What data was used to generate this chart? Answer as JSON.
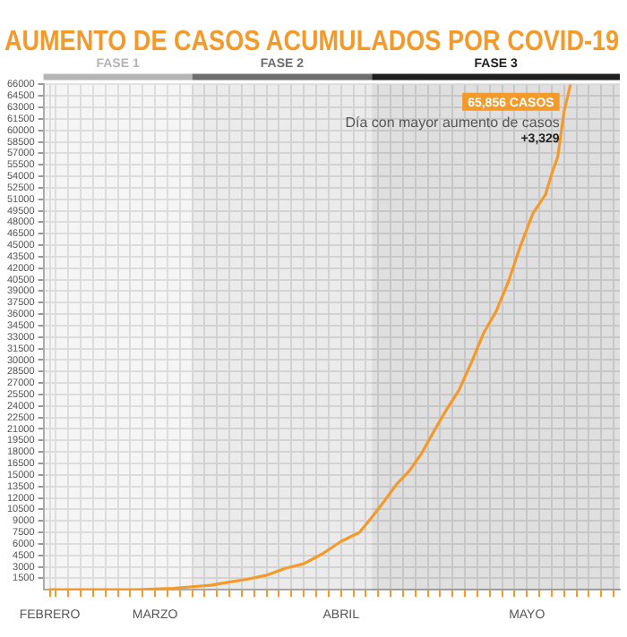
{
  "chart_data": {
    "type": "line",
    "title": "AUMENTO DE CASOS ACUMULADOS POR COVID-19",
    "x": [
      "--02-28",
      "--03-05",
      "--03-10",
      "--03-14",
      "--03-17",
      "--03-20",
      "--03-23",
      "--03-26",
      "--03-29",
      "--04-01",
      "--04-04",
      "--04-07",
      "--04-10",
      "--04-13",
      "--04-16",
      "--04-19",
      "--04-21",
      "--04-23",
      "--04-25",
      "--04-27",
      "--04-29",
      "--05-01",
      "--05-03",
      "--05-05",
      "--05-07",
      "--05-09",
      "--05-11",
      "--05-13",
      "--05-15",
      "--05-17",
      "--05-19",
      "--05-20",
      "--05-21",
      "--05-22",
      "--05-23"
    ],
    "series": [
      {
        "color": "#f39a2b",
        "values": [
          0,
          0,
          0,
          0,
          100,
          200,
          400,
          600,
          1000,
          1400,
          1900,
          2800,
          3400,
          4700,
          6300,
          7500,
          9500,
          11600,
          13800,
          15500,
          17800,
          20700,
          23500,
          26000,
          29600,
          33500,
          36300,
          40200,
          45000,
          49200,
          51600,
          54300,
          56600,
          62500,
          65856
        ]
      }
    ],
    "xlim": [
      "--02-27",
      "--05-31"
    ],
    "xticks": [
      {
        "value": "--02-28",
        "label": "FEBRERO"
      },
      {
        "value": "--03-01",
        "label": null
      },
      {
        "value": "--03-03",
        "label": null
      },
      {
        "value": "--03-05",
        "label": null
      },
      {
        "value": "--03-07",
        "label": null
      },
      {
        "value": "--03-09",
        "label": null
      },
      {
        "value": "--03-11",
        "label": null
      },
      {
        "value": "--03-13",
        "label": null
      },
      {
        "value": "--03-15",
        "label": null
      },
      {
        "value": "--03-17",
        "label": "MARZO"
      },
      {
        "value": "--03-19",
        "label": null
      },
      {
        "value": "--03-21",
        "label": null
      },
      {
        "value": "--03-23",
        "label": null
      },
      {
        "value": "--03-25",
        "label": null
      },
      {
        "value": "--03-27",
        "label": null
      },
      {
        "value": "--03-29",
        "label": null
      },
      {
        "value": "--03-31",
        "label": null
      },
      {
        "value": "--04-02",
        "label": null
      },
      {
        "value": "--04-04",
        "label": null
      },
      {
        "value": "--04-06",
        "label": null
      },
      {
        "value": "--04-08",
        "label": null
      },
      {
        "value": "--04-10",
        "label": null
      },
      {
        "value": "--04-12",
        "label": null
      },
      {
        "value": "--04-14",
        "label": null
      },
      {
        "value": "--04-16",
        "label": "ABRIL"
      },
      {
        "value": "--04-18",
        "label": null
      },
      {
        "value": "--04-20",
        "label": null
      },
      {
        "value": "--04-22",
        "label": null
      },
      {
        "value": "--04-24",
        "label": null
      },
      {
        "value": "--04-26",
        "label": null
      },
      {
        "value": "--04-28",
        "label": null
      },
      {
        "value": "--04-30",
        "label": null
      },
      {
        "value": "--05-02",
        "label": null
      },
      {
        "value": "--05-04",
        "label": null
      },
      {
        "value": "--05-06",
        "label": null
      },
      {
        "value": "--05-08",
        "label": null
      },
      {
        "value": "--05-10",
        "label": null
      },
      {
        "value": "--05-12",
        "label": null
      },
      {
        "value": "--05-14",
        "label": null
      },
      {
        "value": "--05-16",
        "label": "MAYO"
      },
      {
        "value": "--05-18",
        "label": null
      },
      {
        "value": "--05-20",
        "label": null
      },
      {
        "value": "--05-22",
        "label": null
      },
      {
        "value": "--05-24",
        "label": null
      },
      {
        "value": "--05-26",
        "label": null
      },
      {
        "value": "--05-28",
        "label": null
      },
      {
        "value": "--05-30",
        "label": null
      }
    ],
    "ylim": [
      0,
      66000
    ],
    "yticks": [
      1500,
      3000,
      4500,
      6000,
      7500,
      9000,
      10500,
      12000,
      13500,
      15000,
      16500,
      18000,
      19500,
      21000,
      22500,
      24000,
      25500,
      27000,
      28500,
      30000,
      31500,
      33000,
      34500,
      36000,
      37500,
      39000,
      40500,
      42000,
      43500,
      45000,
      46500,
      48000,
      49500,
      51000,
      52500,
      54000,
      55500,
      57000,
      58500,
      60000,
      61500,
      63000,
      64500,
      66000
    ],
    "grid": true,
    "marker": "none",
    "line_style": "solid",
    "bands": [
      {
        "axis": "x",
        "from": "--02-27",
        "to": "--03-23",
        "label": "FASE 1",
        "color": "#b5b5b5"
      },
      {
        "axis": "x",
        "from": "--03-23",
        "to": "--04-21",
        "label": "FASE 2",
        "color": "#6e6e6e"
      },
      {
        "axis": "x",
        "from": "--04-21",
        "to": "--05-31",
        "label": "FASE 3",
        "color": "#1e1e1e"
      }
    ],
    "annotations": [
      {
        "text": "65,856 CASOS",
        "x": "--05-23",
        "y": 65856
      },
      "Día con mayor aumento de casos",
      "+3,329"
    ]
  }
}
